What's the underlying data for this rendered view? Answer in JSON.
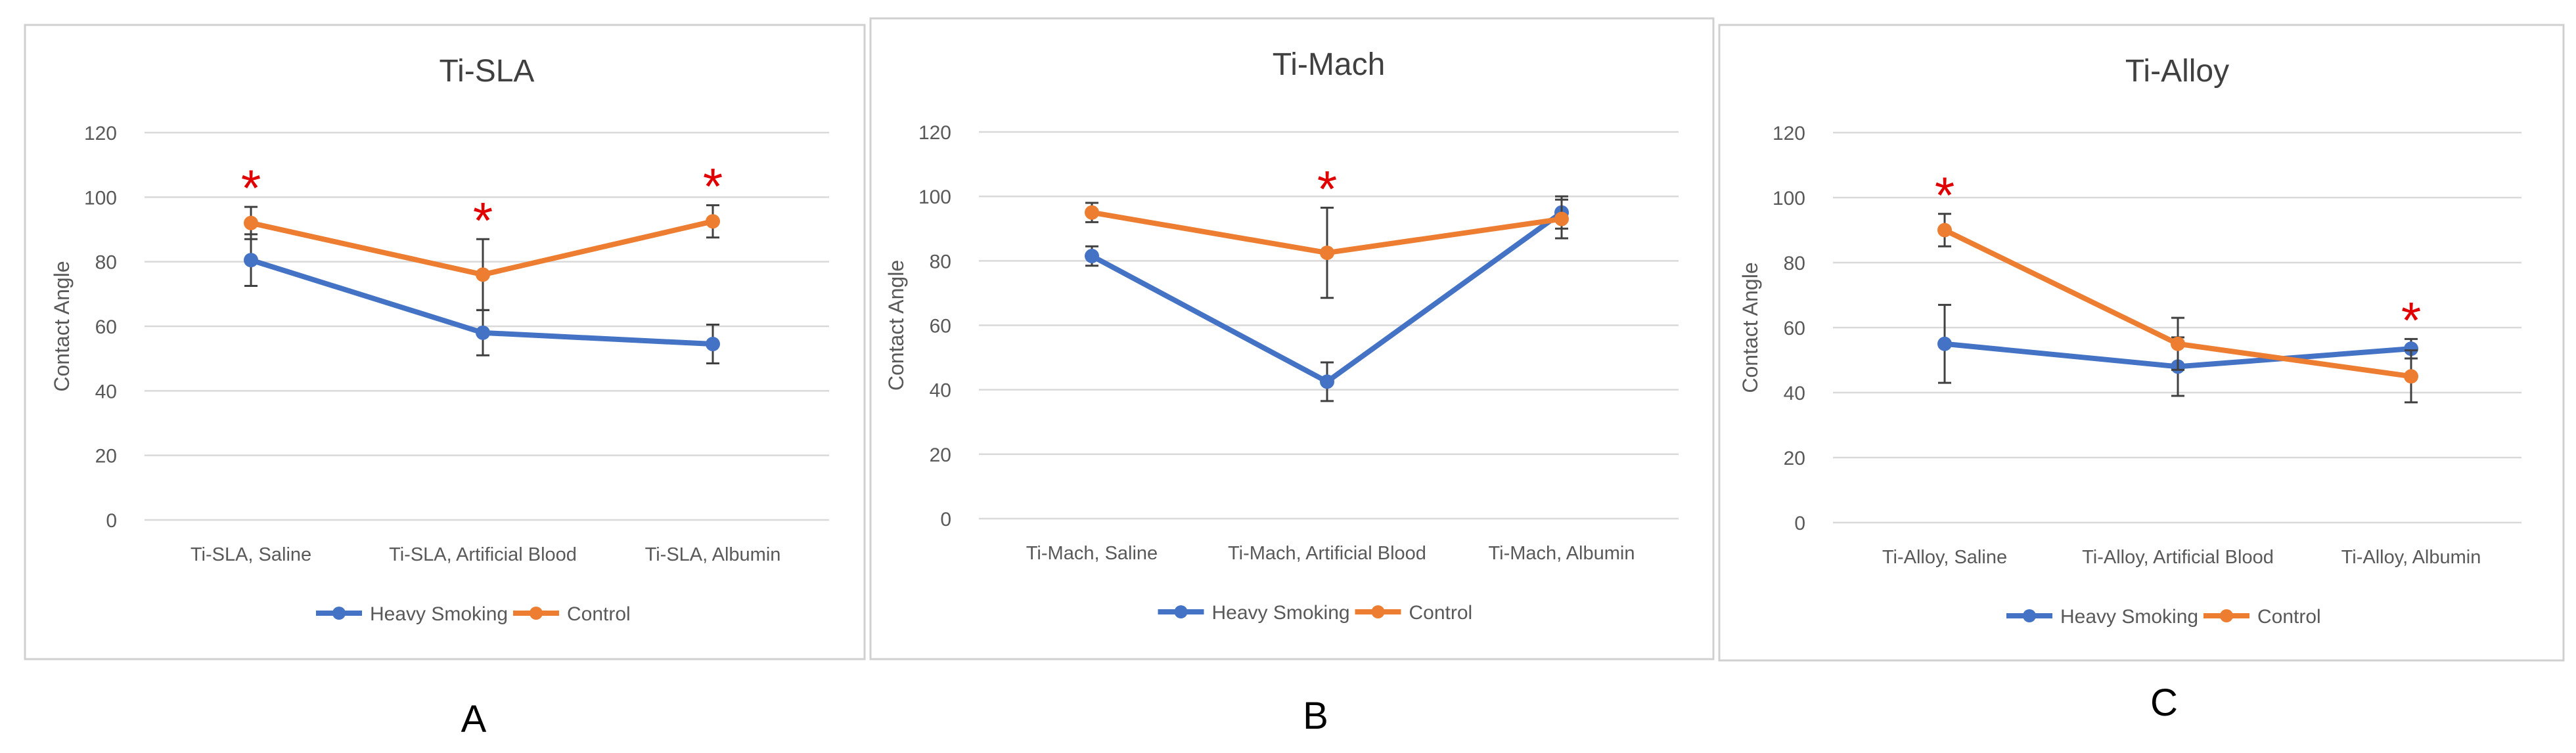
{
  "figure": {
    "colors": {
      "heavy": "#4472C4",
      "control": "#ED7D31",
      "star": "#E00000",
      "grid": "#D9D9D9",
      "tick": "#595959",
      "title": "#404040",
      "frame": "#D0D0D0",
      "error": "#404040"
    },
    "star_glyph": "*"
  },
  "chart_data": [
    {
      "type": "line",
      "title": "Ti-SLA",
      "panel_label": "A",
      "ylabel": "Contact Angle",
      "xlabel": "",
      "ylim": [
        0,
        120
      ],
      "yticks": [
        0,
        20,
        40,
        60,
        80,
        100,
        120
      ],
      "categories": [
        "Ti-SLA, Saline",
        "Ti-SLA, Artificial Blood",
        "Ti-SLA, Albumin"
      ],
      "series": [
        {
          "name": "Heavy Smoking",
          "color": "#4472C4",
          "values": [
            80.5,
            58,
            54.5
          ],
          "errors": [
            8,
            7,
            6
          ]
        },
        {
          "name": "Control",
          "color": "#ED7D31",
          "values": [
            92,
            76,
            92.5
          ],
          "errors": [
            5,
            11,
            5
          ]
        }
      ],
      "significance": [
        0,
        1,
        2
      ],
      "legend": "bottom"
    },
    {
      "type": "line",
      "title": "Ti-Mach",
      "panel_label": "B",
      "ylabel": "Contact Angle",
      "xlabel": "",
      "ylim": [
        0,
        120
      ],
      "yticks": [
        0,
        20,
        40,
        60,
        80,
        100,
        120
      ],
      "categories": [
        "Ti-Mach, Saline",
        "Ti-Mach, Artificial Blood",
        "Ti-Mach, Albumin"
      ],
      "series": [
        {
          "name": "Heavy Smoking",
          "color": "#4472C4",
          "values": [
            81.5,
            42.5,
            95
          ],
          "errors": [
            3,
            6,
            5
          ]
        },
        {
          "name": "Control",
          "color": "#ED7D31",
          "values": [
            95,
            82.5,
            93
          ],
          "errors": [
            3,
            14,
            6
          ]
        }
      ],
      "significance": [
        1
      ],
      "legend": "bottom"
    },
    {
      "type": "line",
      "title": "Ti-Alloy",
      "panel_label": "C",
      "ylabel": "Contact Angle",
      "xlabel": "",
      "ylim": [
        0,
        120
      ],
      "yticks": [
        0,
        20,
        40,
        60,
        80,
        100,
        120
      ],
      "categories": [
        "Ti-Alloy, Saline",
        "Ti-Alloy, Artificial Blood",
        "Ti-Alloy, Albumin"
      ],
      "series": [
        {
          "name": "Heavy Smoking",
          "color": "#4472C4",
          "values": [
            55,
            48,
            53.5
          ],
          "errors": [
            12,
            9,
            3
          ]
        },
        {
          "name": "Control",
          "color": "#ED7D31",
          "values": [
            90,
            55,
            45
          ],
          "errors": [
            5,
            8,
            8
          ]
        }
      ],
      "significance": [
        0,
        2
      ],
      "legend": "bottom"
    }
  ]
}
